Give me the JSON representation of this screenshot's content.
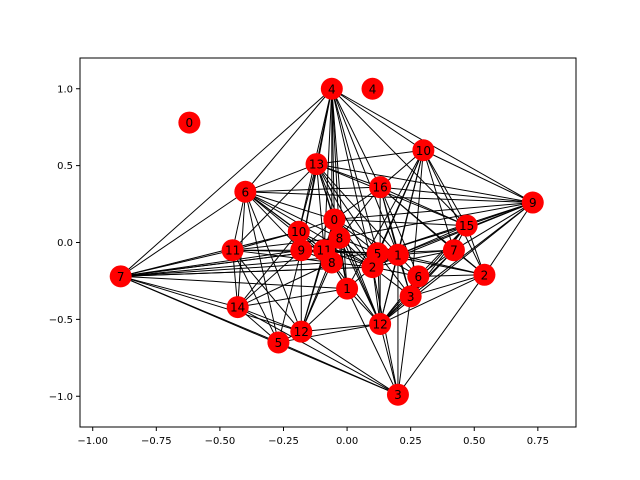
{
  "chart_data": {
    "type": "network",
    "title": "",
    "xlabel": "",
    "ylabel": "",
    "xlim": [
      -1.05,
      0.9
    ],
    "ylim": [
      -1.2,
      1.2
    ],
    "xticks": [
      -1.0,
      -0.75,
      -0.5,
      -0.25,
      0.0,
      0.25,
      0.5,
      0.75
    ],
    "xtick_labels": [
      "−1.00",
      "−0.75",
      "−0.50",
      "−0.25",
      "0.00",
      "0.25",
      "0.50",
      "0.75"
    ],
    "yticks": [
      1.0,
      0.5,
      0.0,
      -0.5,
      -1.0
    ],
    "ytick_labels": [
      "1.0",
      "0.5",
      "0.0",
      "−0.5",
      "−1.0"
    ],
    "node_color": "#ff0000",
    "edge_color": "#000000",
    "nodes": [
      {
        "label": "0",
        "x": -0.62,
        "y": 0.78
      },
      {
        "label": "4",
        "x": -0.06,
        "y": 1.0
      },
      {
        "label": "4",
        "x": 0.1,
        "y": 1.0
      },
      {
        "label": "10",
        "x": 0.3,
        "y": 0.6
      },
      {
        "label": "13",
        "x": -0.12,
        "y": 0.51
      },
      {
        "label": "16",
        "x": 0.13,
        "y": 0.36
      },
      {
        "label": "6",
        "x": -0.4,
        "y": 0.33
      },
      {
        "label": "9",
        "x": 0.73,
        "y": 0.26
      },
      {
        "label": "0",
        "x": -0.05,
        "y": 0.15
      },
      {
        "label": "15",
        "x": 0.47,
        "y": 0.11
      },
      {
        "label": "10",
        "x": -0.19,
        "y": 0.07
      },
      {
        "label": "8",
        "x": -0.03,
        "y": 0.03
      },
      {
        "label": "11",
        "x": -0.45,
        "y": -0.05
      },
      {
        "label": "9",
        "x": -0.18,
        "y": -0.05
      },
      {
        "label": "11",
        "x": -0.09,
        "y": -0.05
      },
      {
        "label": "7",
        "x": 0.42,
        "y": -0.05
      },
      {
        "label": "5",
        "x": 0.12,
        "y": -0.07
      },
      {
        "label": "1",
        "x": 0.2,
        "y": -0.08
      },
      {
        "label": "8",
        "x": -0.06,
        "y": -0.13
      },
      {
        "label": "2",
        "x": 0.1,
        "y": -0.16
      },
      {
        "label": "6",
        "x": 0.28,
        "y": -0.22
      },
      {
        "label": "7",
        "x": -0.89,
        "y": -0.22
      },
      {
        "label": "2",
        "x": 0.54,
        "y": -0.21
      },
      {
        "label": "1",
        "x": 0.0,
        "y": -0.3
      },
      {
        "label": "3",
        "x": 0.25,
        "y": -0.35
      },
      {
        "label": "14",
        "x": -0.43,
        "y": -0.42
      },
      {
        "label": "12",
        "x": 0.13,
        "y": -0.53
      },
      {
        "label": "12",
        "x": -0.18,
        "y": -0.58
      },
      {
        "label": "5",
        "x": -0.27,
        "y": -0.65
      },
      {
        "label": "3",
        "x": 0.2,
        "y": -0.99
      }
    ],
    "edges": [
      [
        1,
        6
      ],
      [
        1,
        4
      ],
      [
        1,
        8
      ],
      [
        1,
        11
      ],
      [
        1,
        13
      ],
      [
        1,
        14
      ],
      [
        1,
        16
      ],
      [
        1,
        17
      ],
      [
        1,
        5
      ],
      [
        1,
        3
      ],
      [
        1,
        9
      ],
      [
        1,
        10
      ],
      [
        1,
        18
      ],
      [
        1,
        23
      ],
      [
        1,
        19
      ],
      [
        1,
        7
      ],
      [
        1,
        21
      ],
      [
        3,
        4
      ],
      [
        3,
        5
      ],
      [
        3,
        7
      ],
      [
        3,
        9
      ],
      [
        3,
        16
      ],
      [
        3,
        17
      ],
      [
        3,
        19
      ],
      [
        3,
        23
      ],
      [
        3,
        24
      ],
      [
        3,
        26
      ],
      [
        3,
        15
      ],
      [
        3,
        22
      ],
      [
        4,
        6
      ],
      [
        4,
        5
      ],
      [
        4,
        8
      ],
      [
        4,
        7
      ],
      [
        4,
        9
      ],
      [
        4,
        10
      ],
      [
        4,
        12
      ],
      [
        4,
        13
      ],
      [
        4,
        16
      ],
      [
        4,
        17
      ],
      [
        4,
        19
      ],
      [
        4,
        26
      ],
      [
        4,
        14
      ],
      [
        4,
        11
      ],
      [
        5,
        7
      ],
      [
        5,
        9
      ],
      [
        5,
        8
      ],
      [
        5,
        15
      ],
      [
        5,
        17
      ],
      [
        5,
        20
      ],
      [
        5,
        22
      ],
      [
        5,
        26
      ],
      [
        5,
        6
      ],
      [
        5,
        11
      ],
      [
        5,
        24
      ],
      [
        6,
        8
      ],
      [
        6,
        10
      ],
      [
        6,
        12
      ],
      [
        6,
        13
      ],
      [
        6,
        14
      ],
      [
        6,
        21
      ],
      [
        6,
        25
      ],
      [
        6,
        27
      ],
      [
        6,
        28
      ],
      [
        6,
        11
      ],
      [
        6,
        18
      ],
      [
        6,
        19
      ],
      [
        6,
        7
      ],
      [
        7,
        9
      ],
      [
        7,
        15
      ],
      [
        7,
        17
      ],
      [
        7,
        22
      ],
      [
        7,
        24
      ],
      [
        7,
        26
      ],
      [
        7,
        8
      ],
      [
        7,
        19
      ],
      [
        7,
        11
      ],
      [
        7,
        16
      ],
      [
        8,
        10
      ],
      [
        8,
        11
      ],
      [
        8,
        13
      ],
      [
        8,
        14
      ],
      [
        8,
        16
      ],
      [
        8,
        17
      ],
      [
        8,
        18
      ],
      [
        8,
        19
      ],
      [
        8,
        23
      ],
      [
        8,
        26
      ],
      [
        8,
        9
      ],
      [
        8,
        27
      ],
      [
        9,
        15
      ],
      [
        9,
        17
      ],
      [
        9,
        20
      ],
      [
        9,
        22
      ],
      [
        9,
        26
      ],
      [
        9,
        16
      ],
      [
        9,
        24
      ],
      [
        10,
        12
      ],
      [
        10,
        13
      ],
      [
        10,
        14
      ],
      [
        10,
        21
      ],
      [
        10,
        25
      ],
      [
        10,
        18
      ],
      [
        10,
        19
      ],
      [
        11,
        13
      ],
      [
        11,
        14
      ],
      [
        11,
        18
      ],
      [
        11,
        19
      ],
      [
        11,
        23
      ],
      [
        11,
        16
      ],
      [
        11,
        26
      ],
      [
        11,
        27
      ],
      [
        12,
        13
      ],
      [
        12,
        21
      ],
      [
        12,
        25
      ],
      [
        12,
        27
      ],
      [
        12,
        28
      ],
      [
        12,
        18
      ],
      [
        12,
        11
      ],
      [
        12,
        16
      ],
      [
        13,
        14
      ],
      [
        13,
        18
      ],
      [
        13,
        21
      ],
      [
        13,
        25
      ],
      [
        13,
        27
      ],
      [
        13,
        28
      ],
      [
        13,
        16
      ],
      [
        14,
        18
      ],
      [
        14,
        19
      ],
      [
        14,
        21
      ],
      [
        14,
        23
      ],
      [
        14,
        27
      ],
      [
        14,
        16
      ],
      [
        15,
        16
      ],
      [
        15,
        17
      ],
      [
        15,
        20
      ],
      [
        15,
        22
      ],
      [
        15,
        24
      ],
      [
        15,
        26
      ],
      [
        15,
        19
      ],
      [
        16,
        17
      ],
      [
        16,
        19
      ],
      [
        16,
        20
      ],
      [
        16,
        24
      ],
      [
        16,
        26
      ],
      [
        16,
        22
      ],
      [
        17,
        20
      ],
      [
        17,
        22
      ],
      [
        17,
        24
      ],
      [
        17,
        26
      ],
      [
        17,
        29
      ],
      [
        17,
        19
      ],
      [
        18,
        19
      ],
      [
        18,
        21
      ],
      [
        18,
        23
      ],
      [
        18,
        25
      ],
      [
        18,
        26
      ],
      [
        18,
        27
      ],
      [
        19,
        20
      ],
      [
        19,
        23
      ],
      [
        19,
        24
      ],
      [
        19,
        26
      ],
      [
        19,
        29
      ],
      [
        19,
        21
      ],
      [
        20,
        22
      ],
      [
        20,
        24
      ],
      [
        20,
        26
      ],
      [
        21,
        25
      ],
      [
        21,
        27
      ],
      [
        21,
        28
      ],
      [
        21,
        29
      ],
      [
        21,
        14
      ],
      [
        21,
        16
      ],
      [
        21,
        23
      ],
      [
        21,
        19
      ],
      [
        22,
        24
      ],
      [
        22,
        26
      ],
      [
        22,
        29
      ],
      [
        23,
        26
      ],
      [
        23,
        27
      ],
      [
        23,
        29
      ],
      [
        23,
        25
      ],
      [
        24,
        26
      ],
      [
        24,
        29
      ],
      [
        25,
        27
      ],
      [
        25,
        28
      ],
      [
        25,
        29
      ],
      [
        26,
        27
      ],
      [
        26,
        28
      ],
      [
        26,
        29
      ],
      [
        27,
        28
      ],
      [
        27,
        29
      ],
      [
        28,
        29
      ]
    ]
  }
}
